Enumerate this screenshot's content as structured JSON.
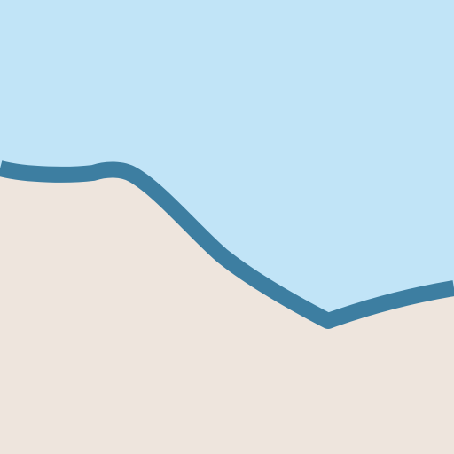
{
  "map": {
    "layers": [
      {
        "kind": "water",
        "color": "#c1e4f7"
      },
      {
        "kind": "land",
        "color": "#eee5dd"
      },
      {
        "kind": "shoreline",
        "color": "#3d7ea1"
      }
    ]
  }
}
